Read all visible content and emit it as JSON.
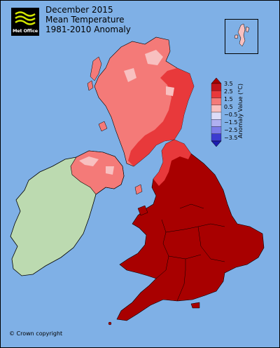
{
  "title": {
    "line1": "December 2015",
    "line2": "Mean Temperature",
    "line3": "1981-2010 Anomaly"
  },
  "logo": {
    "text": "Met Office"
  },
  "legend": {
    "title": "Anomaly Value (°C)",
    "ticks": [
      "3.5",
      "2.5",
      "1.5",
      "0.5",
      "−0.5",
      "−1.5",
      "−2.5",
      "−3.5"
    ],
    "colors": [
      "#c0141c",
      "#e8393b",
      "#f47a78",
      "#f8c0c0",
      "#dcdcf8",
      "#b0b0f0",
      "#7c7ce8",
      "#3c3cd0"
    ]
  },
  "colors": {
    "sea": "#7fb0e6",
    "ireland": "#bcdab0",
    "anomaly_above_3": "#a80000",
    "anomaly_2_to_3": "#e8393b",
    "anomaly_1_to_2": "#f47a78",
    "anomaly_0_to_1": "#f8c0c0"
  },
  "copyright": "© Crown copyright"
}
